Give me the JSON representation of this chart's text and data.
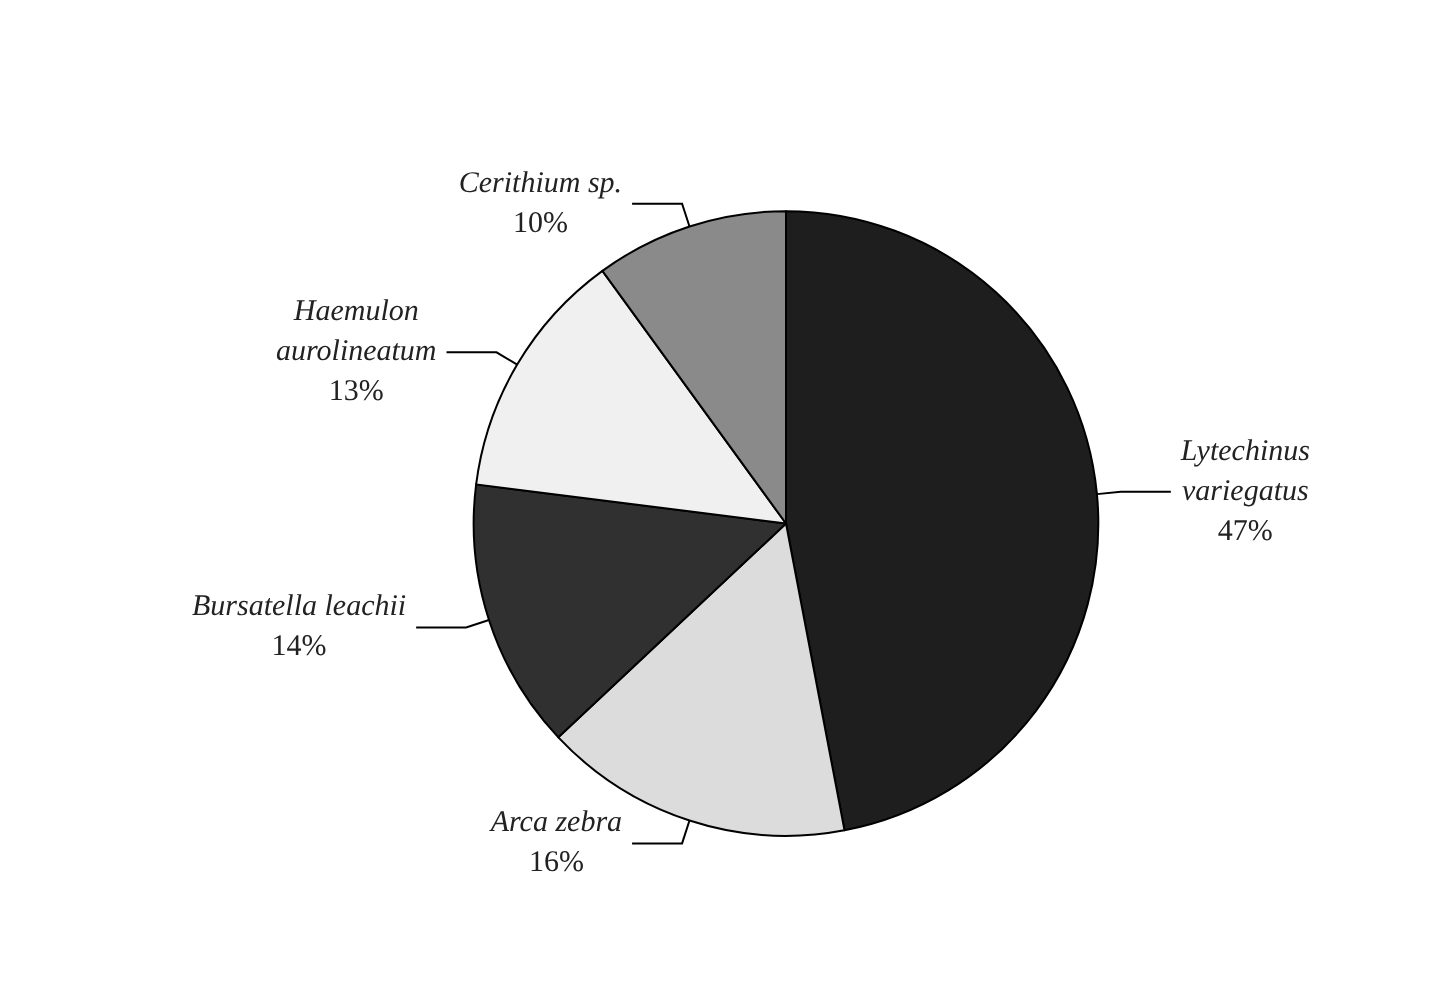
{
  "chart_data": {
    "type": "pie",
    "categories": [
      "Lytechinus variegatus",
      "Arca zebra",
      "Bursatella leachii",
      "Haemulon aurolineatum",
      "Cerithium sp."
    ],
    "values": [
      47,
      16,
      14,
      13,
      10
    ],
    "value_labels": [
      "47%",
      "16%",
      "14%",
      "13%",
      "10%"
    ],
    "colors": [
      "#1e1e1e",
      "#dcdcdc",
      "#303030",
      "#f0f0f0",
      "#8a8a8a"
    ],
    "legend": false
  }
}
